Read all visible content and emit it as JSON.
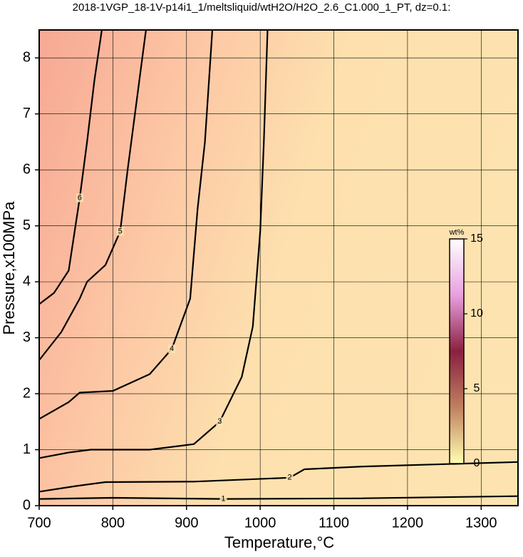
{
  "chart_data": {
    "type": "contour",
    "title": "2018-1VGP_18-1V-p14i1_1/meltsliquid/wtH2O/H2O_2.6_C1.000_1_PT, dz=0.1:",
    "x_label": "Temperature,°C",
    "y_label": "Pressure,x100MPa",
    "xlim": [
      700,
      1350
    ],
    "ylim": [
      0,
      8.5
    ],
    "xticks": [
      700,
      800,
      900,
      1000,
      1100,
      1200,
      1300
    ],
    "yticks": [
      0,
      1,
      2,
      3,
      4,
      5,
      6,
      7,
      8
    ],
    "grid": true,
    "contours": [
      {
        "level": 1,
        "x": [
          700,
          800,
          950,
          1130,
          1350
        ],
        "y": [
          0.12,
          0.14,
          0.12,
          0.13,
          0.17
        ]
      },
      {
        "level": 2,
        "x": [
          700,
          750,
          790,
          910,
          1040,
          1060,
          1140,
          1350
        ],
        "y": [
          0.25,
          0.35,
          0.42,
          0.43,
          0.5,
          0.65,
          0.7,
          0.78
        ]
      },
      {
        "level": 3,
        "x": [
          700,
          740,
          770,
          850,
          910,
          945,
          975,
          990,
          1000,
          1005,
          1010
        ],
        "y": [
          0.85,
          0.95,
          1.0,
          1.0,
          1.1,
          1.5,
          2.3,
          3.2,
          4.9,
          6.5,
          8.5
        ]
      },
      {
        "level": 4,
        "x": [
          700,
          740,
          755,
          800,
          850,
          880,
          905,
          915,
          925,
          930,
          935
        ],
        "y": [
          1.55,
          1.85,
          2.02,
          2.05,
          2.35,
          2.8,
          3.7,
          5.3,
          6.5,
          7.5,
          8.5
        ]
      },
      {
        "level": 5,
        "x": [
          700,
          730,
          755,
          765,
          790,
          810,
          820,
          830,
          840,
          845
        ],
        "y": [
          2.6,
          3.1,
          3.7,
          4.0,
          4.3,
          4.9,
          6.0,
          7.0,
          8.0,
          8.5
        ]
      },
      {
        "level": 6,
        "x": [
          700,
          720,
          740,
          755,
          765,
          775,
          785
        ],
        "y": [
          3.6,
          3.8,
          4.2,
          5.5,
          6.5,
          7.6,
          8.5
        ]
      }
    ],
    "colorbar": {
      "label": "wt%",
      "lim": [
        0,
        15
      ],
      "ticks": [
        0,
        5,
        10,
        15
      ],
      "colors": [
        "#ffffb0",
        "#c08060",
        "#8a2040",
        "#e8a0e0",
        "#ffffff"
      ]
    }
  }
}
